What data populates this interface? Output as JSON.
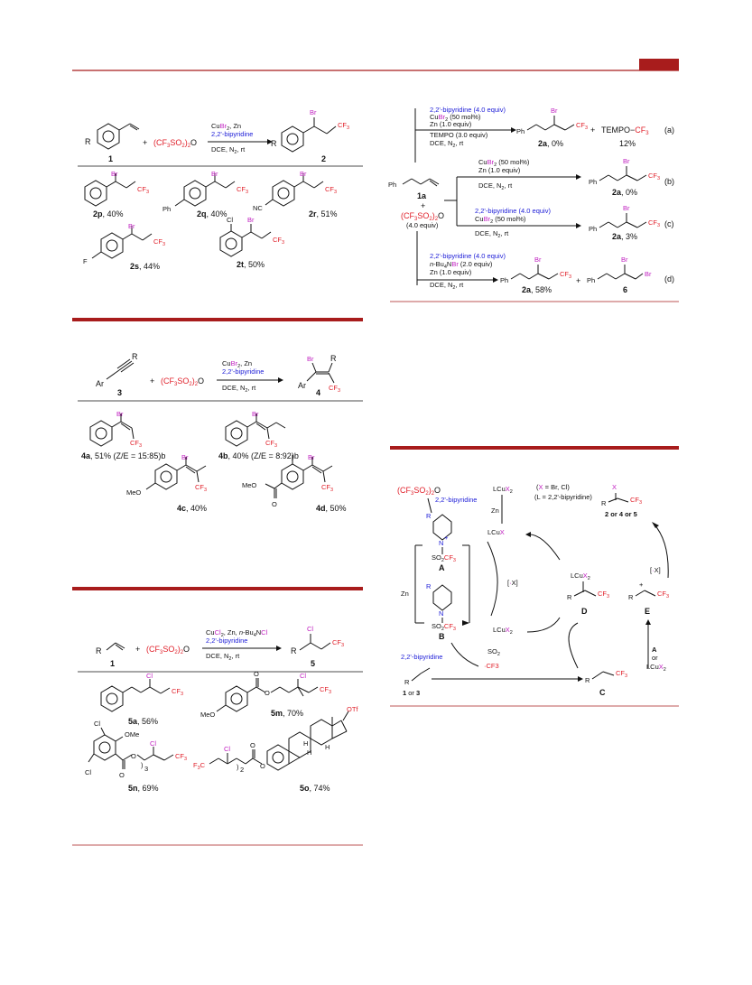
{
  "header": {
    "accent_color": "#a81c1c",
    "text_red": "#e0202a",
    "text_blue": "#2020d8",
    "text_magenta": "#c020c0"
  },
  "scheme_alkene_br": {
    "reactant": "1",
    "plus_anhydride": "(CF3SO2)2O",
    "conditions": [
      "CuBr2, Zn",
      "2,2'-bipyridine",
      "DCE, N2, rt"
    ],
    "product": "2",
    "products": [
      {
        "id": "2p",
        "yield": "40%"
      },
      {
        "id": "2q",
        "yield": "40%"
      },
      {
        "id": "2r",
        "yield": "51%"
      },
      {
        "id": "2s",
        "yield": "44%"
      },
      {
        "id": "2t",
        "yield": "50%"
      }
    ]
  },
  "scheme_alkyne": {
    "reactant": "3",
    "product": "4",
    "conditions": [
      "CuBr2, Zn",
      "2,2'-bipyridine",
      "DCE, N2, rt"
    ],
    "products": [
      {
        "id": "4a",
        "yield": "51% (Z/E = 15:85)b"
      },
      {
        "id": "4b",
        "yield": "40% (Z/E = 8:92)b"
      },
      {
        "id": "4c",
        "yield": "40%"
      },
      {
        "id": "4d",
        "yield": "50%"
      }
    ]
  },
  "scheme_alkene_cl": {
    "reactant": "1",
    "product": "5",
    "conditions": [
      "CuCl2, Zn, n-Bu4NCl",
      "2,2'-bipyridine",
      "DCE, N2, rt"
    ],
    "products": [
      {
        "id": "5a",
        "yield": "56%"
      },
      {
        "id": "5m",
        "yield": "70%"
      },
      {
        "id": "5n",
        "yield": "69%"
      },
      {
        "id": "5o",
        "yield": "74%"
      }
    ]
  },
  "control": {
    "reactant": "1a",
    "reagent": "(CF3SO2)2O",
    "reagent_equiv": "(4.0 equiv)",
    "a": {
      "conditions": [
        "2,2'-bipyridine (4.0 equiv)",
        "CuBr2 (50 mol%)",
        "Zn (1.0 equiv)",
        "TEMPO (3.0 equiv)",
        "DCE, N2, rt"
      ],
      "product": "2a, 0%",
      "side": "TEMPO−CF3",
      "side_yield": "12%",
      "tag": "(a)"
    },
    "b": {
      "conditions": [
        "CuBr2 (50 mol%)",
        "Zn (1.0 equiv)",
        "DCE, N2, rt"
      ],
      "product": "2a, 0%",
      "tag": "(b)"
    },
    "c": {
      "conditions": [
        "2,2'-bipyridine (4.0 equiv)",
        "CuBr2 (50 mol%)",
        "DCE, N2, rt"
      ],
      "product": "2a, 3%",
      "tag": "(c)"
    },
    "d": {
      "conditions": [
        "2,2'-bipyridine (4.0 equiv)",
        "n-Bu4NBr (2.0 equiv)",
        "Zn (1.0 equiv)",
        "DCE, N2, rt"
      ],
      "product": "2a, 58%",
      "side": "6",
      "tag": "(d)"
    }
  },
  "mechanism": {
    "start": "(CF3SO2)2O",
    "bipy": "2,2'-bipyridine",
    "lcux2": "LCuX2",
    "xdef": "(X = Br, Cl)",
    "ldef": "(L = 2,2'-bipyridine)",
    "product_label": "2 or 4 or 5",
    "labels": [
      "A",
      "B",
      "C",
      "D",
      "E"
    ],
    "so2": "SO2",
    "cf3": "·CF3",
    "substrate": "1 or 3",
    "a_or": "A or LCuX2"
  }
}
